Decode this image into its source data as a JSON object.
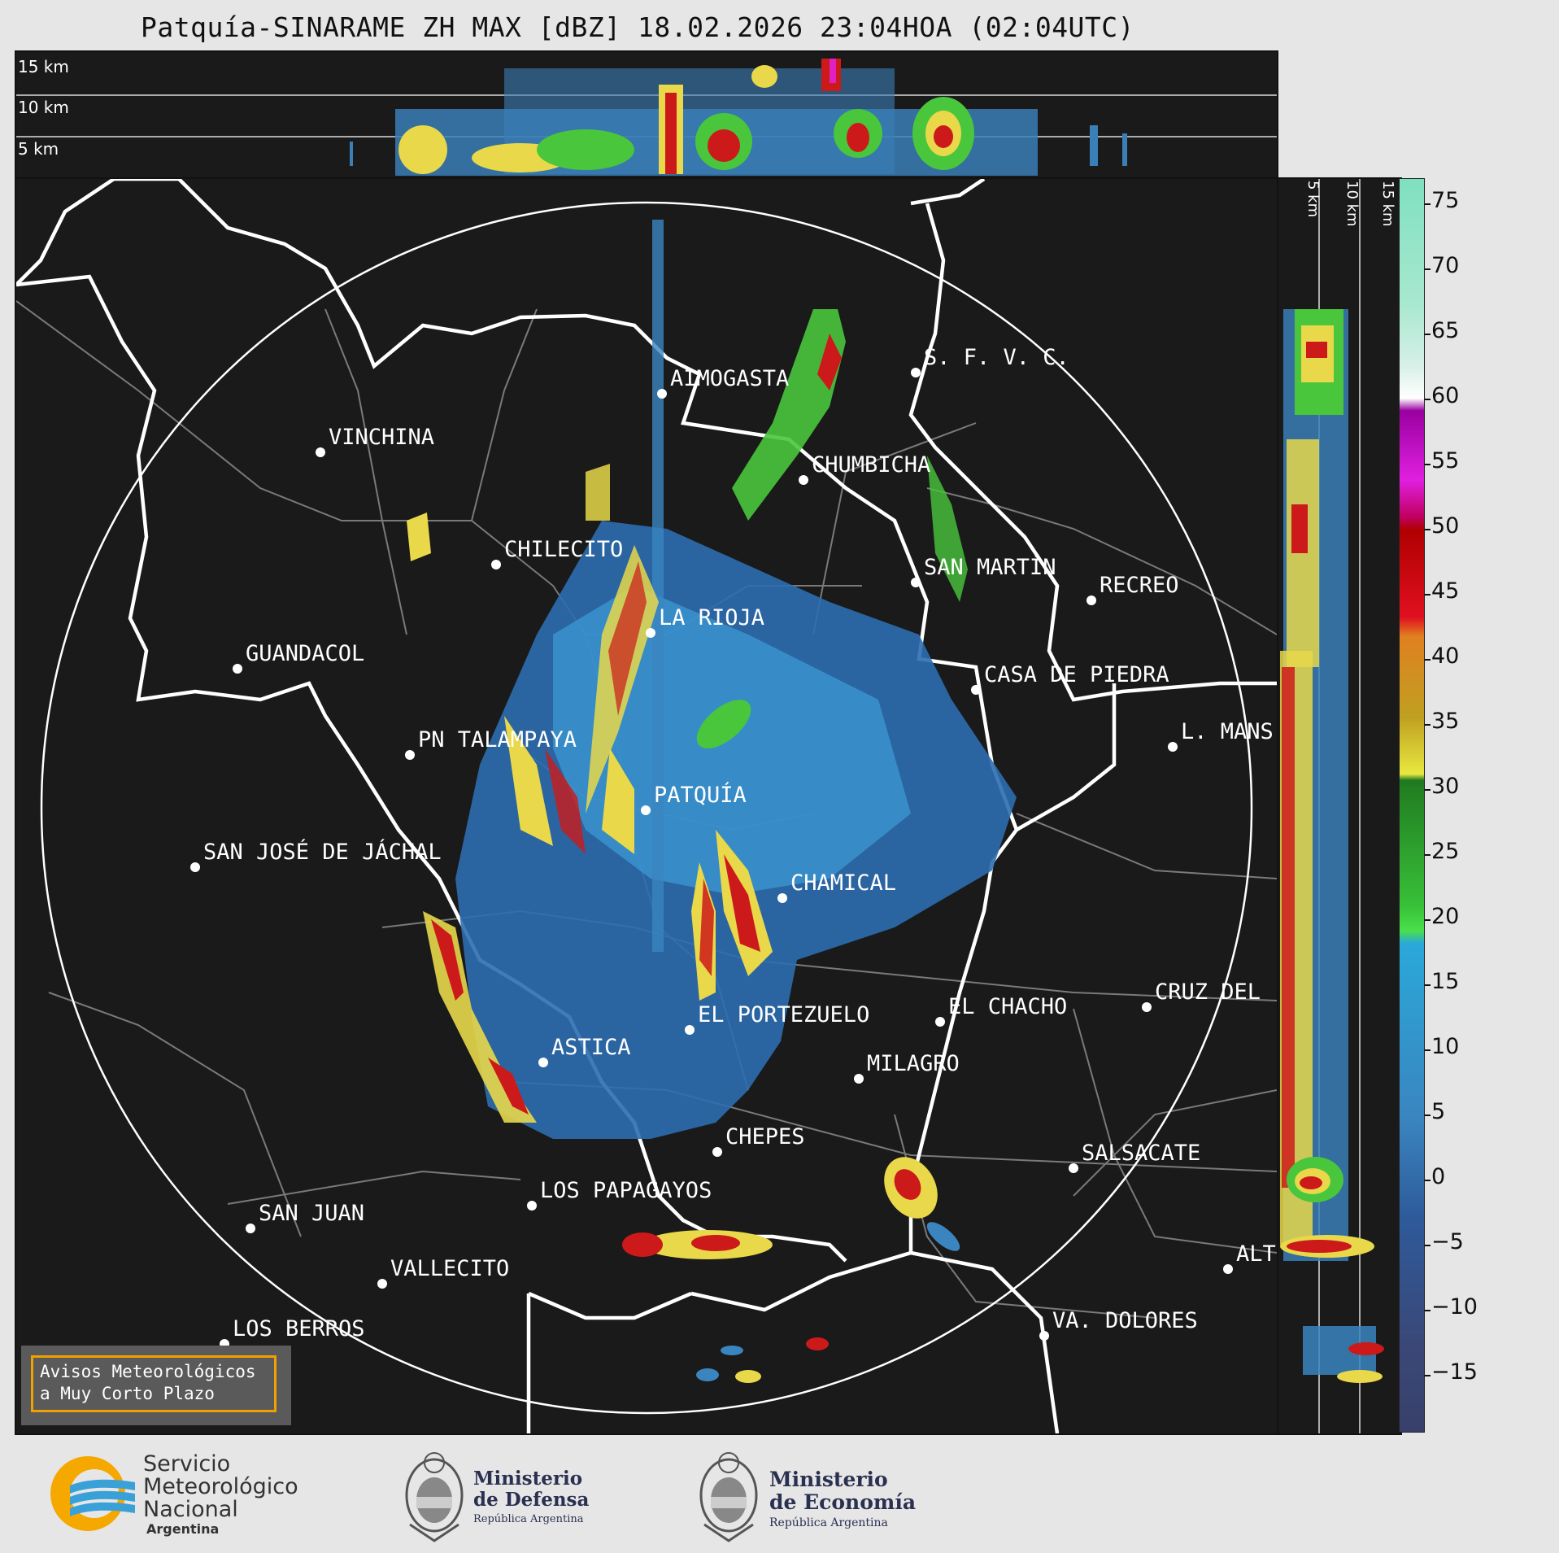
{
  "title": "Patquía-SINARAME ZH MAX [dBZ] 18.02.2026 23:04HOA (02:04UTC)",
  "top_panel": {
    "altitude_labels": [
      "15 km",
      "10 km",
      "5 km"
    ]
  },
  "side_panel": {
    "altitude_labels": [
      "5 km",
      "10 km",
      "15 km"
    ]
  },
  "colorbar": {
    "unit": "dBZ",
    "ticks": [
      "75",
      "70",
      "65",
      "60",
      "55",
      "50",
      "45",
      "40",
      "35",
      "30",
      "25",
      "20",
      "15",
      "10",
      "5",
      "0",
      "−5",
      "−10",
      "−15"
    ]
  },
  "cities": [
    {
      "name": "AIMOGASTA"
    },
    {
      "name": "S. F. V. C."
    },
    {
      "name": "VINCHINA"
    },
    {
      "name": "CHUMBICHA"
    },
    {
      "name": "CHILECITO"
    },
    {
      "name": "SAN MARTÍN"
    },
    {
      "name": "RECREO"
    },
    {
      "name": "LA RIOJA"
    },
    {
      "name": "GUANDACOL"
    },
    {
      "name": "CASA DE PIEDRA"
    },
    {
      "name": "PN TALAMPAYA"
    },
    {
      "name": "L. MANS"
    },
    {
      "name": "PATQUÍA"
    },
    {
      "name": "SAN JOSÉ DE JÁCHAL"
    },
    {
      "name": "CHAMICAL"
    },
    {
      "name": "EL PORTEZUELO"
    },
    {
      "name": "EL CHACHO"
    },
    {
      "name": "CRUZ DEL"
    },
    {
      "name": "ASTICA"
    },
    {
      "name": "MILAGRO"
    },
    {
      "name": "CHEPES"
    },
    {
      "name": "SALSACATE"
    },
    {
      "name": "LOS PAPAGAYOS"
    },
    {
      "name": "SAN JUAN"
    },
    {
      "name": "ALT"
    },
    {
      "name": "VALLECITO"
    },
    {
      "name": "VA. DOLORES"
    },
    {
      "name": "LOS BERROS"
    }
  ],
  "notice": {
    "line1": "Avisos Meteorológicos",
    "line2": "a Muy Corto Plazo"
  },
  "logos": {
    "smn": {
      "line1": "Servicio",
      "line2": "Meteorológico",
      "line3": "Nacional",
      "line4": "Argentina",
      "colors": [
        "#f5a800",
        "#3aa0d8"
      ]
    },
    "defensa": {
      "line1": "Ministerio",
      "line2": "de Defensa",
      "line3": "República Argentina"
    },
    "economia": {
      "line1": "Ministerio",
      "line2": "de Economía",
      "line3": "República Argentina"
    }
  }
}
